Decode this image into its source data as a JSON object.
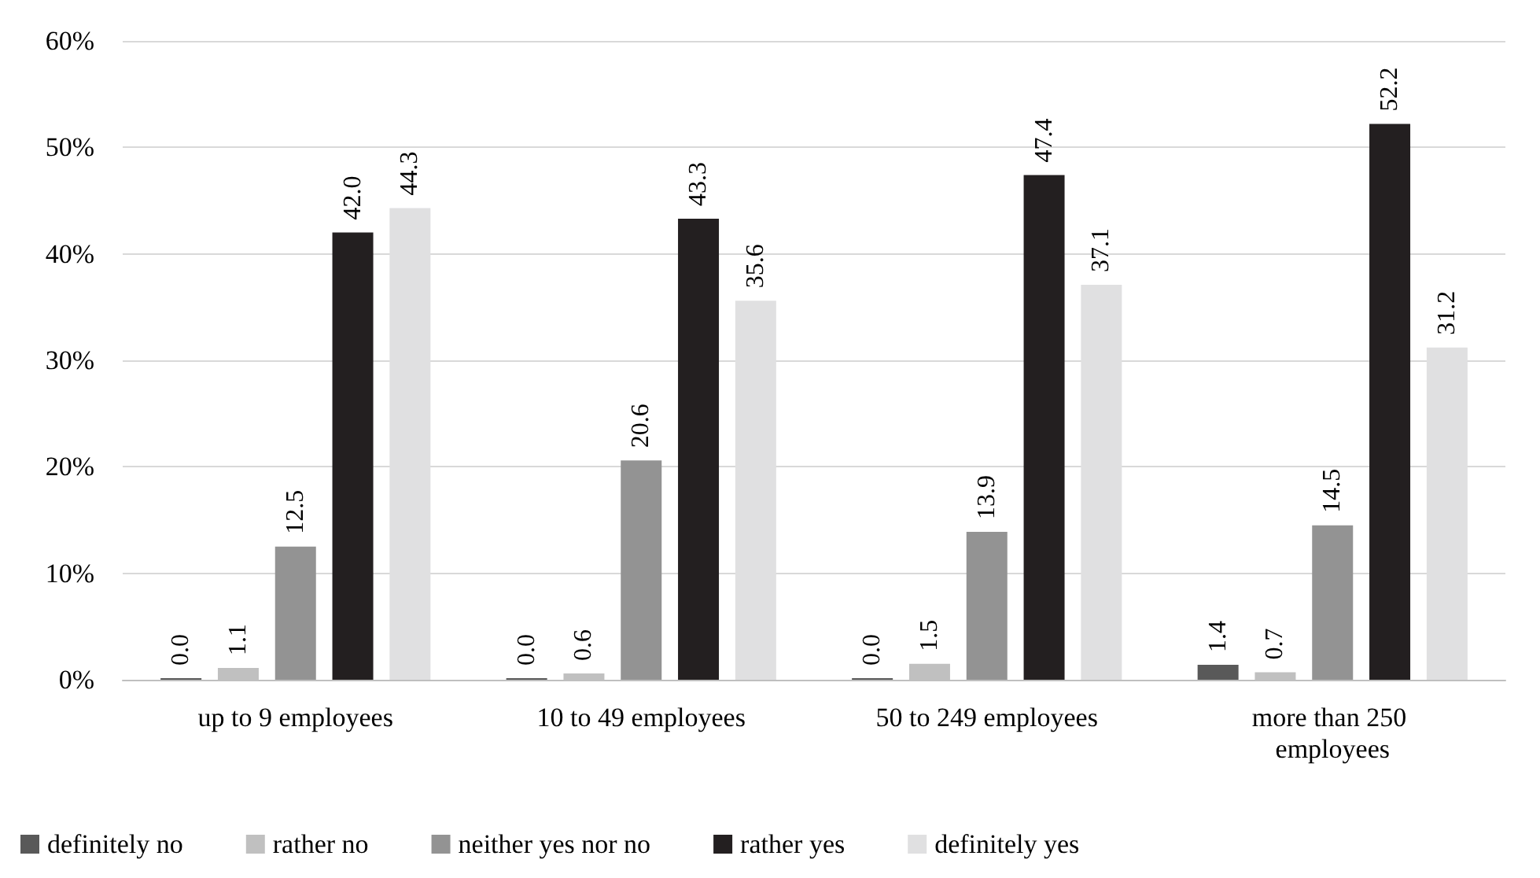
{
  "chart_data": {
    "type": "bar",
    "categories": [
      "up to 9 employees",
      "10 to 49 employees",
      "50 to 249 employees",
      "more than 250 employees"
    ],
    "series": [
      {
        "name": "definitely no",
        "color": "#595959",
        "values": [
          0.0,
          0.0,
          0.0,
          1.4
        ],
        "value_labels": [
          "0.0",
          "0.0",
          "0.0",
          "1.4"
        ]
      },
      {
        "name": "rather no",
        "color": "#c0c0c0",
        "values": [
          1.1,
          0.6,
          1.5,
          0.7
        ],
        "value_labels": [
          "1.1",
          "0.6",
          "1.5",
          "0.7"
        ]
      },
      {
        "name": "neither yes nor no",
        "color": "#939393",
        "values": [
          12.5,
          20.6,
          13.9,
          14.5
        ],
        "value_labels": [
          "12.5",
          "20.6",
          "13.9",
          "14.5"
        ]
      },
      {
        "name": "rather yes",
        "color": "#231f20",
        "values": [
          42.0,
          43.3,
          47.4,
          52.2
        ],
        "value_labels": [
          "42.0",
          "43.3",
          "47.4",
          "52.2"
        ]
      },
      {
        "name": "definitely yes",
        "color": "#e0e0e1",
        "values": [
          44.3,
          35.6,
          37.1,
          31.2
        ],
        "value_labels": [
          "44.3",
          "35.6",
          "37.1",
          "31.2"
        ]
      }
    ],
    "ylim": [
      0,
      60
    ],
    "yticks": [
      {
        "value": 0,
        "label": "0%"
      },
      {
        "value": 10,
        "label": "10%"
      },
      {
        "value": 20,
        "label": "20%"
      },
      {
        "value": 30,
        "label": "30%"
      },
      {
        "value": 40,
        "label": "40%"
      },
      {
        "value": 50,
        "label": "50%"
      },
      {
        "value": 60,
        "label": "60%"
      }
    ],
    "grid": "y",
    "legend": "bottom"
  }
}
